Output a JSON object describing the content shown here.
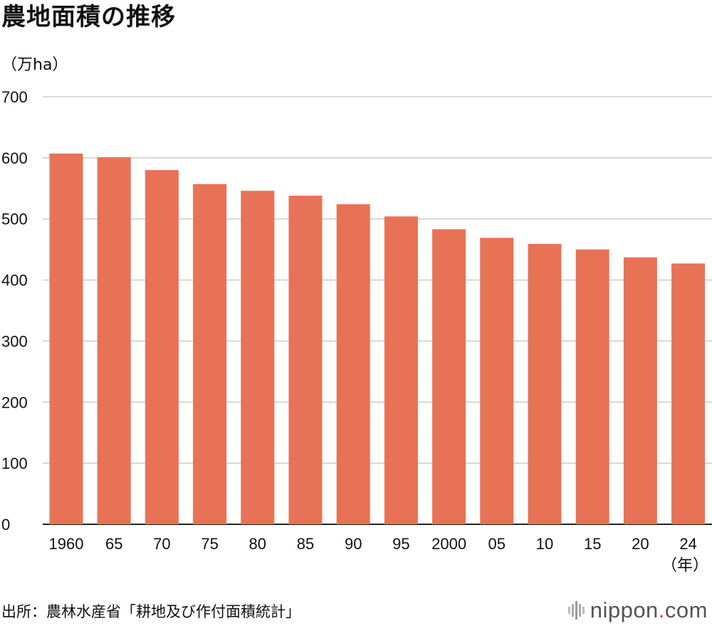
{
  "chart_data": {
    "type": "bar",
    "title": "農地面積の推移",
    "ylabel": "（万ha）",
    "xlabel": "（年）",
    "categories": [
      "1960",
      "65",
      "70",
      "75",
      "80",
      "85",
      "90",
      "95",
      "2000",
      "05",
      "10",
      "15",
      "20",
      "24"
    ],
    "values": [
      607,
      601,
      580,
      557,
      546,
      538,
      524,
      504,
      483,
      469,
      459,
      450,
      437,
      427
    ],
    "ylim": [
      0,
      700
    ],
    "yticks": [
      0,
      100,
      200,
      300,
      400,
      500,
      600,
      700
    ],
    "grid": true,
    "bar_color": "#e87255",
    "grid_color": "#cccccc"
  },
  "source": "出所：農林水産省「耕地及び作付面積統計」",
  "logo": {
    "name": "nippon",
    "dot": ".",
    "suffix": "com",
    "accent": "#e8380d"
  }
}
